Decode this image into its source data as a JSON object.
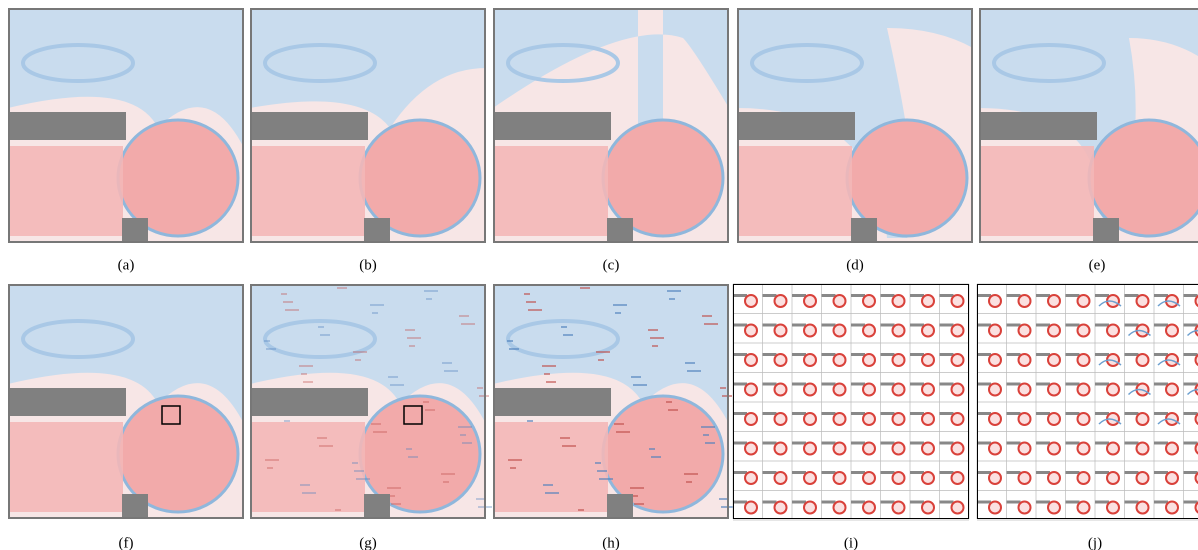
{
  "subfigures": [
    {
      "label": "(a)"
    },
    {
      "label": "(b)"
    },
    {
      "label": "(c)"
    },
    {
      "label": "(d)"
    },
    {
      "label": "(e)"
    },
    {
      "label": "(f)"
    },
    {
      "label": "(g)"
    },
    {
      "label": "(h)"
    },
    {
      "label": "(i)"
    },
    {
      "label": "(j)"
    }
  ]
}
